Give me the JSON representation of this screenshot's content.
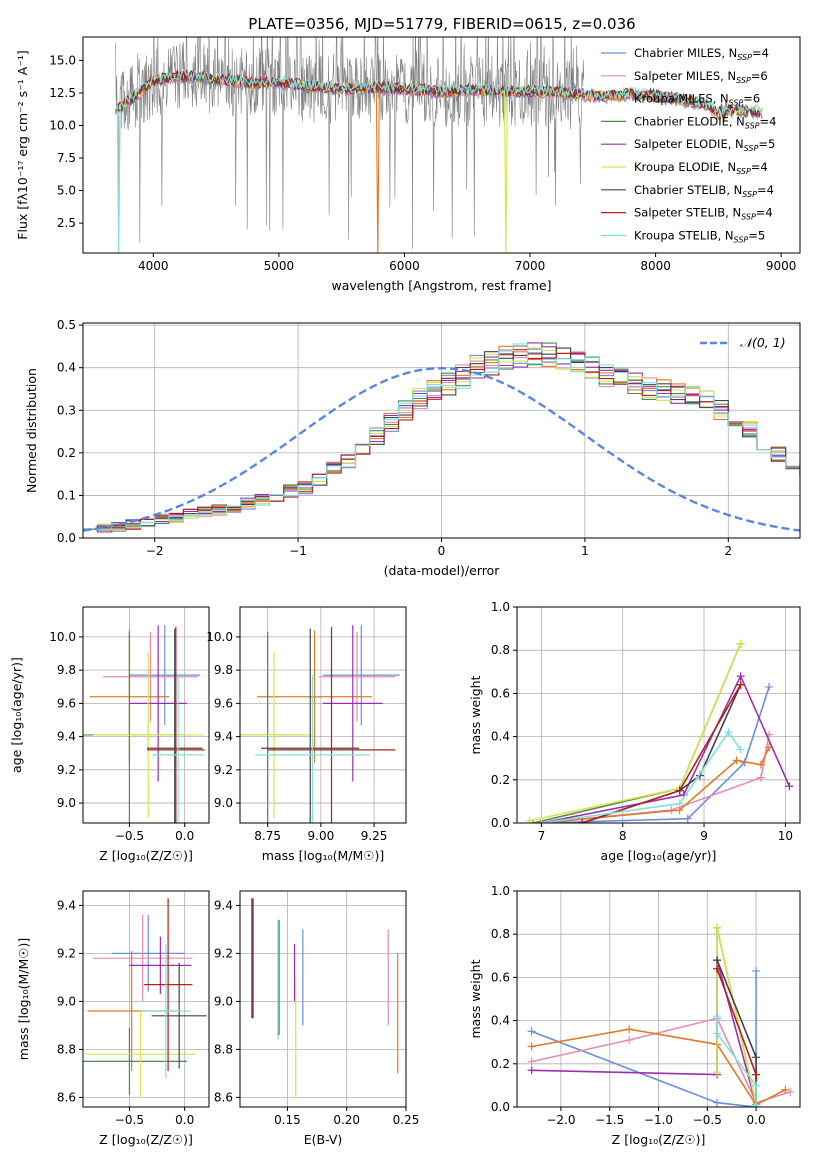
{
  "figure_title": "PLATE=0356, MJD=51779, FIBERID=0615, z=0.036",
  "colors": {
    "c0": "#6a8fdd",
    "c1": "#e88ab5",
    "c2": "#e07b25",
    "c3": "#4d8a4d",
    "c4": "#9b2fae",
    "c5": "#d7e44c",
    "c6": "#444444",
    "c7": "#b21f1f",
    "c8": "#7fe0e0",
    "gray": "#808080",
    "grid": "#b0b0b0",
    "normal": "#5b86de"
  },
  "chart_data": [
    {
      "id": "spectrum",
      "type": "line",
      "title": "PLATE=0356, MJD=51779, FIBERID=0615, z=0.036",
      "xlabel": "wavelength [Angstrom, rest frame]",
      "ylabel": "Flux [fλ10⁻¹⁷ erg cm⁻² s⁻¹ A⁻¹]",
      "xlim": [
        3440,
        9150
      ],
      "ylim": [
        0.2,
        16.8
      ],
      "xticks": [
        4000,
        5000,
        6000,
        7000,
        8000,
        9000
      ],
      "yticks": [
        2.5,
        5.0,
        7.5,
        10.0,
        12.5,
        15.0
      ],
      "ytick_labels": [
        "2.5",
        "5.0",
        "7.5",
        "10.0",
        "12.5",
        "15.0"
      ],
      "grid": false,
      "legend_position": "top-right",
      "continuum_x": [
        3700,
        3850,
        4000,
        4200,
        4500,
        4800,
        5000,
        5200,
        5500,
        5800,
        6000,
        6300,
        6600,
        6900,
        7200,
        7400,
        7600,
        7800,
        8000,
        8200,
        8400,
        8600,
        8850
      ],
      "continuum_y": [
        11.2,
        12.2,
        13.4,
        13.8,
        13.6,
        13.2,
        13.3,
        13.0,
        12.8,
        12.9,
        12.8,
        12.6,
        12.7,
        12.6,
        12.6,
        12.4,
        12.2,
        12.4,
        12.3,
        12.0,
        11.6,
        11.2,
        11.0
      ],
      "observed_x_range": [
        3700,
        7430
      ],
      "model_x_range": [
        3700,
        8850
      ],
      "series": [
        {
          "label": "Chabrier MILES, N",
          "sub": "SSP",
          "tail": "=4",
          "color": "c0"
        },
        {
          "label": "Salpeter MILES, N",
          "sub": "SSP",
          "tail": "=6",
          "color": "c1"
        },
        {
          "label": "Kroupa MILES, N",
          "sub": "SSP",
          "tail": "=6",
          "color": "c2"
        },
        {
          "label": "Chabrier ELODIE, N",
          "sub": "SSP",
          "tail": "=4",
          "color": "c3"
        },
        {
          "label": "Salpeter ELODIE, N",
          "sub": "SSP",
          "tail": "=5",
          "color": "c4"
        },
        {
          "label": "Kroupa ELODIE, N",
          "sub": "SSP",
          "tail": "=4",
          "color": "c5"
        },
        {
          "label": "Chabrier STELIB, N",
          "sub": "SSP",
          "tail": "=4",
          "color": "c6"
        },
        {
          "label": "Salpeter STELIB, N",
          "sub": "SSP",
          "tail": "=4",
          "color": "c7"
        },
        {
          "label": "Kroupa STELIB, N",
          "sub": "SSP",
          "tail": "=5",
          "color": "c8"
        }
      ]
    },
    {
      "id": "residuals",
      "type": "histogram",
      "xlabel": "(data-model)/error",
      "ylabel": "Normed distribution",
      "xlim": [
        -2.5,
        2.5
      ],
      "ylim": [
        0,
        0.505
      ],
      "xticks": [
        -2,
        -1,
        0,
        1,
        2
      ],
      "xtick_labels": [
        "−2",
        "−1",
        "0",
        "1",
        "2"
      ],
      "yticks": [
        0.0,
        0.1,
        0.2,
        0.3,
        0.4,
        0.5
      ],
      "ytick_labels": [
        "0.0",
        "0.1",
        "0.2",
        "0.3",
        "0.4",
        "0.5"
      ],
      "grid": true,
      "legend_position": "top-right",
      "legend_label": "𝒩(0, 1)",
      "bin_width": 0.1,
      "base_counts": [
        0.018,
        0.022,
        0.026,
        0.032,
        0.036,
        0.044,
        0.05,
        0.055,
        0.06,
        0.065,
        0.07,
        0.08,
        0.09,
        0.1,
        0.11,
        0.12,
        0.14,
        0.16,
        0.18,
        0.21,
        0.24,
        0.27,
        0.3,
        0.33,
        0.345,
        0.36,
        0.38,
        0.4,
        0.41,
        0.42,
        0.43,
        0.435,
        0.43,
        0.42,
        0.41,
        0.4,
        0.38,
        0.37,
        0.36,
        0.35,
        0.35,
        0.34,
        0.33,
        0.32,
        0.3,
        0.28,
        0.25,
        0.22,
        0.2,
        0.18,
        0.16,
        0.14,
        0.12,
        0.11,
        0.1,
        0.09,
        0.075,
        0.06,
        0.05,
        0.045,
        0.04,
        0.035,
        0.03,
        0.028,
        0.025,
        0.022,
        0.02,
        0.018,
        0.016,
        0.015
      ]
    },
    {
      "id": "age_vs_z",
      "type": "scatter",
      "xlabel": "Z [log₁₀(Z/Z☉)]",
      "ylabel": "age  [log₁₀(age/yr)]",
      "xlim": [
        -0.92,
        0.22
      ],
      "ylim": [
        8.88,
        10.18
      ],
      "xticks": [
        -0.5,
        0.0
      ],
      "xtick_labels": [
        "−0.5",
        "0.0"
      ],
      "yticks": [
        9.0,
        9.2,
        9.4,
        9.6,
        9.8,
        10.0
      ],
      "ytick_labels": [
        "9.0",
        "9.2",
        "9.4",
        "9.6",
        "9.8",
        "10.0"
      ],
      "grid": true,
      "points": [
        {
          "x": -0.18,
          "xerr": 0.32,
          "y": 9.77,
          "yerr": 0.3,
          "color": "c0"
        },
        {
          "x": -0.31,
          "xerr": 0.43,
          "y": 9.76,
          "yerr": 0.27,
          "color": "c1"
        },
        {
          "x": -0.5,
          "xerr": 0.36,
          "y": 9.64,
          "yerr": 0.4,
          "color": "c2"
        },
        {
          "x": -0.5,
          "xerr": 0.52,
          "y": 9.41,
          "yerr": 0.62,
          "color": "c3"
        },
        {
          "x": -0.24,
          "xerr": 0.26,
          "y": 9.6,
          "yerr": 0.47,
          "color": "c4"
        },
        {
          "x": -0.33,
          "xerr": 0.5,
          "y": 9.41,
          "yerr": 0.5,
          "color": "c5"
        },
        {
          "x": -0.09,
          "xerr": 0.25,
          "y": 9.33,
          "yerr": 0.72,
          "color": "c6"
        },
        {
          "x": -0.08,
          "xerr": 0.26,
          "y": 9.32,
          "yerr": 0.74,
          "color": "c7"
        },
        {
          "x": -0.06,
          "xerr": 0.23,
          "y": 9.29,
          "yerr": 0.48,
          "color": "c8"
        }
      ]
    },
    {
      "id": "age_vs_mass",
      "type": "scatter",
      "xlabel": "mass [log₁₀(M/M☉)]",
      "ylabel": "",
      "xlim": [
        8.62,
        9.4
      ],
      "ylim": [
        8.88,
        10.18
      ],
      "xticks": [
        8.75,
        9.0,
        9.25
      ],
      "xtick_labels": [
        "8.75",
        "9.00",
        "9.25"
      ],
      "yticks": [
        9.0,
        9.2,
        9.4,
        9.6,
        9.8,
        10.0
      ],
      "ytick_labels": [
        "9.0",
        "9.2",
        "9.4",
        "9.6",
        "9.8",
        "10.0"
      ],
      "grid": true,
      "points": [
        {
          "x": 9.19,
          "xerr": 0.18,
          "y": 9.77,
          "yerr": 0.3,
          "color": "c0"
        },
        {
          "x": 9.17,
          "xerr": 0.18,
          "y": 9.76,
          "yerr": 0.27,
          "color": "c1"
        },
        {
          "x": 8.97,
          "xerr": 0.27,
          "y": 9.64,
          "yerr": 0.4,
          "color": "c2"
        },
        {
          "x": 8.75,
          "xerr": 0.17,
          "y": 9.41,
          "yerr": 0.62,
          "color": "c3"
        },
        {
          "x": 9.15,
          "xerr": 0.14,
          "y": 9.6,
          "yerr": 0.47,
          "color": "c4"
        },
        {
          "x": 8.78,
          "xerr": 0.18,
          "y": 9.41,
          "yerr": 0.5,
          "color": "c5"
        },
        {
          "x": 8.95,
          "xerr": 0.23,
          "y": 9.33,
          "yerr": 0.72,
          "color": "c6"
        },
        {
          "x": 9.05,
          "xerr": 0.3,
          "y": 9.32,
          "yerr": 0.74,
          "color": "c7"
        },
        {
          "x": 8.96,
          "xerr": 0.27,
          "y": 9.29,
          "yerr": 0.48,
          "color": "c8"
        }
      ]
    },
    {
      "id": "mass_weight_vs_age",
      "type": "line",
      "xlabel": "age  [log₁₀(age/yr)]",
      "ylabel": "mass weight",
      "xlim": [
        6.7,
        10.18
      ],
      "ylim": [
        0,
        1.0
      ],
      "xticks": [
        7,
        8,
        9,
        10
      ],
      "xtick_labels": [
        "7",
        "8",
        "9",
        "10"
      ],
      "yticks": [
        0.0,
        0.2,
        0.4,
        0.6,
        0.8,
        1.0
      ],
      "ytick_labels": [
        "0.0",
        "0.2",
        "0.4",
        "0.6",
        "0.8",
        "1.0"
      ],
      "grid": true,
      "series": [
        {
          "color": "c0",
          "x": [
            7.0,
            8.8,
            9.5,
            9.8
          ],
          "y": [
            0.0,
            0.02,
            0.28,
            0.63
          ]
        },
        {
          "color": "c1",
          "x": [
            7.0,
            8.6,
            9.7,
            9.8
          ],
          "y": [
            0.0,
            0.06,
            0.21,
            0.41
          ]
        },
        {
          "color": "c2",
          "x": [
            7.0,
            8.7,
            9.4,
            9.7,
            9.8
          ],
          "y": [
            0.0,
            0.06,
            0.29,
            0.27,
            0.35
          ]
        },
        {
          "color": "c3",
          "x": [
            6.9,
            8.7,
            9.45
          ],
          "y": [
            0.0,
            0.16,
            0.83
          ]
        },
        {
          "color": "c4",
          "x": [
            7.0,
            8.75,
            9.45,
            10.05
          ],
          "y": [
            0.0,
            0.13,
            0.68,
            0.17
          ]
        },
        {
          "color": "c5",
          "x": [
            6.85,
            8.7,
            9.45
          ],
          "y": [
            0.01,
            0.16,
            0.83
          ]
        },
        {
          "color": "c6",
          "x": [
            7.5,
            8.7,
            8.95,
            9.45
          ],
          "y": [
            0.0,
            0.15,
            0.22,
            0.64
          ]
        },
        {
          "color": "c7",
          "x": [
            7.5,
            8.7,
            9.45
          ],
          "y": [
            0.0,
            0.15,
            0.64
          ]
        },
        {
          "color": "c8",
          "x": [
            7.0,
            8.7,
            9.3,
            9.45
          ],
          "y": [
            0.0,
            0.09,
            0.42,
            0.34
          ]
        }
      ]
    },
    {
      "id": "mass_vs_z",
      "type": "scatter",
      "xlabel": "Z [log₁₀(Z/Z☉)]",
      "ylabel": "mass [log₁₀(M/M☉)]",
      "xlim": [
        -0.92,
        0.22
      ],
      "ylim": [
        8.56,
        9.46
      ],
      "xticks": [
        -0.5,
        0.0
      ],
      "xtick_labels": [
        "−0.5",
        "0.0"
      ],
      "yticks": [
        8.6,
        8.8,
        9.0,
        9.2,
        9.4
      ],
      "ytick_labels": [
        "8.6",
        "8.8",
        "9.0",
        "9.2",
        "9.4"
      ],
      "grid": true,
      "points": [
        {
          "x": -0.33,
          "xerr": 0.33,
          "y": 9.2,
          "yerr": 0.16,
          "color": "c0"
        },
        {
          "x": -0.38,
          "xerr": 0.45,
          "y": 9.18,
          "yerr": 0.18,
          "color": "c1"
        },
        {
          "x": -0.48,
          "xerr": 0.4,
          "y": 8.96,
          "yerr": 0.25,
          "color": "c2"
        },
        {
          "x": -0.5,
          "xerr": 0.52,
          "y": 8.75,
          "yerr": 0.14,
          "color": "c3"
        },
        {
          "x": -0.22,
          "xerr": 0.28,
          "y": 9.15,
          "yerr": 0.12,
          "color": "c4"
        },
        {
          "x": -0.4,
          "xerr": 0.5,
          "y": 8.78,
          "yerr": 0.18,
          "color": "c5"
        },
        {
          "x": -0.05,
          "xerr": 0.25,
          "y": 8.94,
          "yerr": 0.22,
          "color": "c6"
        },
        {
          "x": -0.15,
          "xerr": 0.22,
          "y": 9.07,
          "yerr": 0.36,
          "color": "c7"
        },
        {
          "x": -0.17,
          "xerr": 0.22,
          "y": 8.96,
          "yerr": 0.28,
          "color": "c8"
        }
      ]
    },
    {
      "id": "mass_vs_ebv",
      "type": "scatter",
      "xlabel": "E(B-V)",
      "ylabel": "",
      "xlim": [
        0.11,
        0.25
      ],
      "ylim": [
        8.56,
        9.46
      ],
      "xticks": [
        0.15,
        0.2,
        0.25
      ],
      "xtick_labels": [
        "0.15",
        "0.20",
        "0.25"
      ],
      "yticks": [
        8.6,
        8.8,
        9.0,
        9.2,
        9.4
      ],
      "ytick_labels": [
        "8.6",
        "8.8",
        "9.0",
        "9.2",
        "9.4"
      ],
      "grid": true,
      "points": [
        {
          "x": 0.163,
          "xerr": 0,
          "y": 9.1,
          "yerr": 0.2,
          "color": "c0"
        },
        {
          "x": 0.235,
          "xerr": 0,
          "y": 9.1,
          "yerr": 0.2,
          "color": "c1"
        },
        {
          "x": 0.243,
          "xerr": 0,
          "y": 8.95,
          "yerr": 0.25,
          "color": "c2"
        },
        {
          "x": 0.143,
          "xerr": 0,
          "y": 9.1,
          "yerr": 0.24,
          "color": "c3"
        },
        {
          "x": 0.156,
          "xerr": 0,
          "y": 9.12,
          "yerr": 0.12,
          "color": "c4"
        },
        {
          "x": 0.157,
          "xerr": 0,
          "y": 8.85,
          "yerr": 0.25,
          "color": "c5"
        },
        {
          "x": 0.121,
          "xerr": 0,
          "y": 9.18,
          "yerr": 0.25,
          "color": "c6"
        },
        {
          "x": 0.12,
          "xerr": 0,
          "y": 9.18,
          "yerr": 0.25,
          "color": "c7"
        },
        {
          "x": 0.142,
          "xerr": 0,
          "y": 9.09,
          "yerr": 0.25,
          "color": "c8"
        }
      ]
    },
    {
      "id": "mass_weight_vs_z",
      "type": "line",
      "xlabel": "Z [log₁₀(Z/Z☉)]",
      "ylabel": "mass weight",
      "xlim": [
        -2.45,
        0.45
      ],
      "ylim": [
        0,
        1.0
      ],
      "xticks": [
        -2.0,
        -1.5,
        -1.0,
        -0.5,
        0.0
      ],
      "xtick_labels": [
        "−2.0",
        "−1.5",
        "−1.0",
        "−0.5",
        "0.0"
      ],
      "yticks": [
        0.0,
        0.2,
        0.4,
        0.6,
        0.8,
        1.0
      ],
      "ytick_labels": [
        "0.0",
        "0.2",
        "0.4",
        "0.6",
        "0.8",
        "1.0"
      ],
      "grid": true,
      "series": [
        {
          "color": "c0",
          "x": [
            -2.3,
            -0.4,
            0.0,
            0.0
          ],
          "y": [
            0.35,
            0.02,
            0.0,
            0.63
          ]
        },
        {
          "color": "c1",
          "x": [
            -2.3,
            -1.3,
            -0.4,
            0.0,
            0.35
          ],
          "y": [
            0.21,
            0.31,
            0.41,
            0.02,
            0.07
          ]
        },
        {
          "color": "c2",
          "x": [
            -2.3,
            -1.3,
            -0.4,
            0.0,
            0.3
          ],
          "y": [
            0.28,
            0.36,
            0.29,
            0.01,
            0.08
          ]
        },
        {
          "color": "c3",
          "x": [
            -0.4,
            -0.4,
            0.0
          ],
          "y": [
            0.16,
            0.83,
            0.01
          ]
        },
        {
          "color": "c4",
          "x": [
            -2.3,
            -0.4,
            -0.4,
            0.0
          ],
          "y": [
            0.17,
            0.15,
            0.68,
            0.01
          ]
        },
        {
          "color": "c5",
          "x": [
            -0.4,
            -0.4,
            0.0
          ],
          "y": [
            0.16,
            0.83,
            0.01
          ]
        },
        {
          "color": "c6",
          "x": [
            -0.4,
            0.0,
            0.0
          ],
          "y": [
            0.68,
            0.23,
            0.01
          ]
        },
        {
          "color": "c7",
          "x": [
            -0.4,
            0.0,
            0.0
          ],
          "y": [
            0.64,
            0.15,
            0.01
          ]
        },
        {
          "color": "c8",
          "x": [
            -0.4,
            -0.4,
            0.0,
            0.0
          ],
          "y": [
            0.42,
            0.34,
            0.1,
            0.01
          ]
        }
      ]
    }
  ]
}
